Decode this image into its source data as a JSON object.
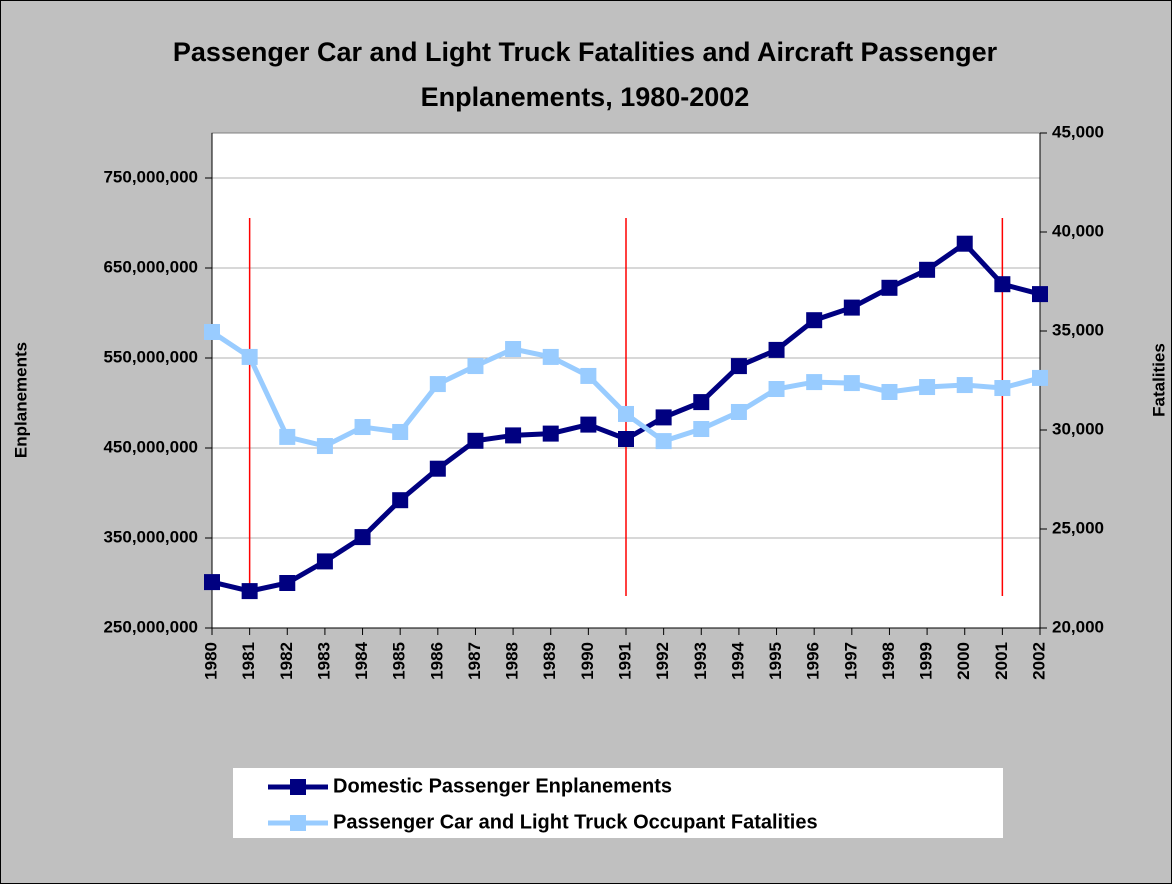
{
  "chart_data": {
    "type": "line",
    "title": "Passenger Car and Light Truck Fatalities and Aircraft Passenger Enplanements, 1980-2002",
    "y_label": "Enplanements",
    "y2_label": "Fatalities",
    "x": [
      1980,
      1981,
      1982,
      1983,
      1984,
      1985,
      1986,
      1987,
      1988,
      1989,
      1990,
      1991,
      1992,
      1993,
      1994,
      1995,
      1996,
      1997,
      1998,
      1999,
      2000,
      2001,
      2002
    ],
    "xlim": [
      1980,
      2002
    ],
    "xticks": [
      1980,
      1981,
      1982,
      1983,
      1984,
      1985,
      1986,
      1987,
      1988,
      1989,
      1990,
      1991,
      1992,
      1993,
      1994,
      1995,
      1996,
      1997,
      1998,
      1999,
      2000,
      2001,
      2002
    ],
    "ylim": [
      250000000,
      800000000
    ],
    "yticks": [
      {
        "value": 250000000,
        "label": "250,000,000"
      },
      {
        "value": 350000000,
        "label": "350,000,000"
      },
      {
        "value": 450000000,
        "label": "450,000,000"
      },
      {
        "value": 550000000,
        "label": "550,000,000"
      },
      {
        "value": 650000000,
        "label": "650,000,000"
      },
      {
        "value": 750000000,
        "label": "750,000,000"
      }
    ],
    "y2lim": [
      20000,
      45000
    ],
    "y2ticks": [
      {
        "value": 20000,
        "label": "20,000"
      },
      {
        "value": 25000,
        "label": "25,000"
      },
      {
        "value": 30000,
        "label": "30,000"
      },
      {
        "value": 35000,
        "label": "35,000"
      },
      {
        "value": 40000,
        "label": "40,000"
      },
      {
        "value": 45000,
        "label": "45,000"
      }
    ],
    "grid": true,
    "reference_lines": [
      1981,
      1991,
      2001
    ],
    "reference_color": "#ff0000",
    "series": [
      {
        "name": "Domestic Passenger Enplanements",
        "color": "#000080",
        "values": [
          301000000,
          291000000,
          300000000,
          324000000,
          351000000,
          392000000,
          427000000,
          458000000,
          464000000,
          466000000,
          476000000,
          460000000,
          484000000,
          501000000,
          541000000,
          559000000,
          592000000,
          606000000,
          628000000,
          648000000,
          677000000,
          632000000,
          621000000
        ]
      },
      {
        "name": "Passenger Car and Light Truck Occupant Fatalities",
        "color": "#99ccff",
        "axis": "y2",
        "values": [
          34950,
          33690,
          29650,
          29190,
          30150,
          29900,
          32320,
          33230,
          34090,
          33690,
          32730,
          30810,
          29440,
          30050,
          30910,
          32070,
          32420,
          32370,
          31920,
          32170,
          32270,
          32120,
          32630
        ]
      }
    ],
    "legend": "bottom"
  }
}
